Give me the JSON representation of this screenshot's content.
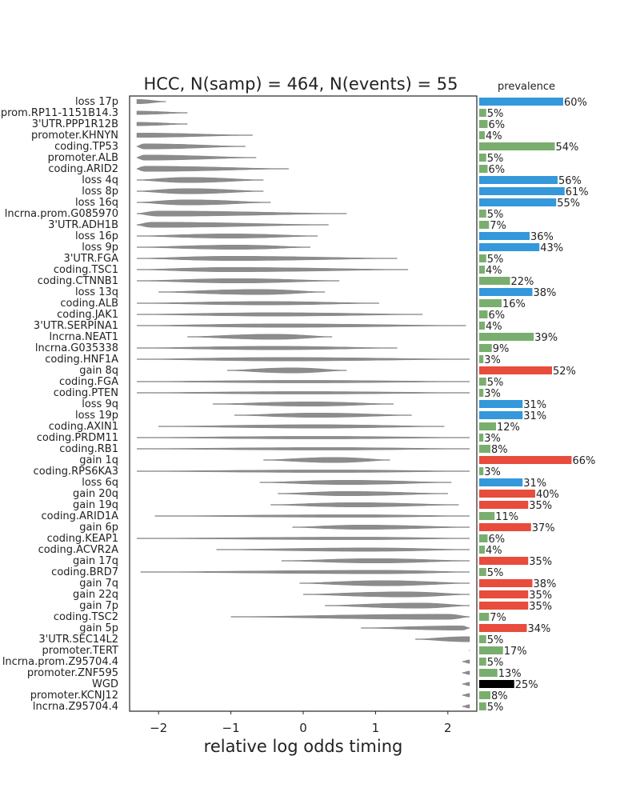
{
  "chart_data": {
    "type": "violin",
    "title": "HCC, N(samp) = 464, N(events) = 55",
    "xlabel": "relative log odds timing",
    "xlim": [
      -2.4,
      2.4
    ],
    "xticks": [
      -2,
      -1,
      0,
      1,
      2
    ],
    "prevalence_title": "prevalence",
    "events": [
      {
        "name": "loss 17p",
        "min": -2.3,
        "max": -1.9,
        "center": -2.3,
        "width": 0.5,
        "prevalence": 60,
        "category": "loss"
      },
      {
        "name": "prom.RP11-1151B14.3",
        "min": -2.3,
        "max": -1.6,
        "center": -2.3,
        "width": 0.4,
        "prevalence": 5,
        "category": "coding"
      },
      {
        "name": "3'UTR.PPP1R12B",
        "min": -2.3,
        "max": -1.6,
        "center": -2.3,
        "width": 0.4,
        "prevalence": 6,
        "category": "coding"
      },
      {
        "name": "promoter.KHNYN",
        "min": -2.3,
        "max": -0.7,
        "center": -2.3,
        "width": 0.5,
        "prevalence": 4,
        "category": "coding"
      },
      {
        "name": "coding.TP53",
        "min": -2.3,
        "max": -0.8,
        "center": -2.2,
        "width": 0.6,
        "prevalence": 54,
        "category": "coding"
      },
      {
        "name": "promoter.ALB",
        "min": -2.3,
        "max": -0.65,
        "center": -2.2,
        "width": 0.6,
        "prevalence": 5,
        "category": "coding"
      },
      {
        "name": "coding.ARID2",
        "min": -2.3,
        "max": -0.2,
        "center": -2.2,
        "width": 0.6,
        "prevalence": 6,
        "category": "coding"
      },
      {
        "name": "loss 4q",
        "min": -2.3,
        "max": -0.55,
        "center": -1.6,
        "width": 0.6,
        "prevalence": 56,
        "category": "loss"
      },
      {
        "name": "loss 8p",
        "min": -2.3,
        "max": -0.55,
        "center": -1.6,
        "width": 0.6,
        "prevalence": 61,
        "category": "loss"
      },
      {
        "name": "loss 16q",
        "min": -2.3,
        "max": -0.45,
        "center": -1.6,
        "width": 0.6,
        "prevalence": 55,
        "category": "loss"
      },
      {
        "name": "lncrna.prom.G085970",
        "min": -2.3,
        "max": 0.6,
        "center": -2.0,
        "width": 0.6,
        "prevalence": 5,
        "category": "coding"
      },
      {
        "name": "3'UTR.ADH1B",
        "min": -2.3,
        "max": 0.35,
        "center": -2.1,
        "width": 0.6,
        "prevalence": 7,
        "category": "coding"
      },
      {
        "name": "loss 16p",
        "min": -2.3,
        "max": 0.2,
        "center": -1.0,
        "width": 0.5,
        "prevalence": 36,
        "category": "loss"
      },
      {
        "name": "loss 9p",
        "min": -2.3,
        "max": 0.1,
        "center": -0.9,
        "width": 0.5,
        "prevalence": 43,
        "category": "loss"
      },
      {
        "name": "3'UTR.FGA",
        "min": -2.3,
        "max": 1.3,
        "center": -1.0,
        "width": 0.5,
        "prevalence": 5,
        "category": "coding"
      },
      {
        "name": "coding.TSC1",
        "min": -2.3,
        "max": 1.45,
        "center": -1.0,
        "width": 0.5,
        "prevalence": 4,
        "category": "coding"
      },
      {
        "name": "coding.CTNNB1",
        "min": -2.3,
        "max": 0.5,
        "center": -0.9,
        "width": 0.5,
        "prevalence": 22,
        "category": "coding"
      },
      {
        "name": "loss 13q",
        "min": -2.0,
        "max": 0.3,
        "center": -0.6,
        "width": 0.6,
        "prevalence": 38,
        "category": "loss"
      },
      {
        "name": "coding.ALB",
        "min": -2.3,
        "max": 1.05,
        "center": -0.5,
        "width": 0.4,
        "prevalence": 16,
        "category": "coding"
      },
      {
        "name": "coding.JAK1",
        "min": -2.3,
        "max": 1.65,
        "center": -0.4,
        "width": 0.4,
        "prevalence": 6,
        "category": "coding"
      },
      {
        "name": "3'UTR.SERPINA1",
        "min": -2.3,
        "max": 2.25,
        "center": -0.3,
        "width": 0.4,
        "prevalence": 4,
        "category": "coding"
      },
      {
        "name": "lncrna.NEAT1",
        "min": -1.6,
        "max": 0.4,
        "center": -0.4,
        "width": 0.6,
        "prevalence": 39,
        "category": "coding"
      },
      {
        "name": "lncrna.G035338",
        "min": -2.3,
        "max": 1.3,
        "center": -0.4,
        "width": 0.4,
        "prevalence": 9,
        "category": "coding"
      },
      {
        "name": "coding.HNF1A",
        "min": -2.3,
        "max": 2.3,
        "center": -0.3,
        "width": 0.4,
        "prevalence": 3,
        "category": "coding"
      },
      {
        "name": "gain 8q",
        "min": -1.05,
        "max": 0.6,
        "center": -0.15,
        "width": 0.6,
        "prevalence": 52,
        "category": "gain"
      },
      {
        "name": "coding.FGA",
        "min": -2.3,
        "max": 2.3,
        "center": 0.0,
        "width": 0.3,
        "prevalence": 5,
        "category": "coding"
      },
      {
        "name": "coding.PTEN",
        "min": -2.3,
        "max": 2.3,
        "center": 0.0,
        "width": 0.3,
        "prevalence": 3,
        "category": "coding"
      },
      {
        "name": "loss 9q",
        "min": -1.25,
        "max": 1.25,
        "center": 0.1,
        "width": 0.5,
        "prevalence": 31,
        "category": "loss"
      },
      {
        "name": "loss 19p",
        "min": -0.95,
        "max": 1.5,
        "center": 0.2,
        "width": 0.5,
        "prevalence": 31,
        "category": "loss"
      },
      {
        "name": "coding.AXIN1",
        "min": -2.0,
        "max": 1.95,
        "center": 0.2,
        "width": 0.4,
        "prevalence": 12,
        "category": "coding"
      },
      {
        "name": "coding.PRDM11",
        "min": -2.3,
        "max": 2.3,
        "center": 0.2,
        "width": 0.3,
        "prevalence": 3,
        "category": "coding"
      },
      {
        "name": "coding.RB1",
        "min": -2.3,
        "max": 2.3,
        "center": 0.3,
        "width": 0.3,
        "prevalence": 8,
        "category": "coding"
      },
      {
        "name": "gain 1q",
        "min": -0.55,
        "max": 1.2,
        "center": 0.45,
        "width": 0.6,
        "prevalence": 66,
        "category": "gain"
      },
      {
        "name": "coding.RPS6KA3",
        "min": -2.3,
        "max": 2.3,
        "center": 0.4,
        "width": 0.3,
        "prevalence": 3,
        "category": "coding"
      },
      {
        "name": "loss 6q",
        "min": -0.6,
        "max": 2.05,
        "center": 0.6,
        "width": 0.5,
        "prevalence": 31,
        "category": "loss"
      },
      {
        "name": "gain 20q",
        "min": -0.35,
        "max": 2.0,
        "center": 0.6,
        "width": 0.5,
        "prevalence": 40,
        "category": "gain"
      },
      {
        "name": "gain 19q",
        "min": -0.45,
        "max": 2.15,
        "center": 0.7,
        "width": 0.5,
        "prevalence": 35,
        "category": "gain"
      },
      {
        "name": "coding.ARID1A",
        "min": -2.05,
        "max": 2.3,
        "center": 0.7,
        "width": 0.3,
        "prevalence": 11,
        "category": "coding"
      },
      {
        "name": "gain 6p",
        "min": -0.15,
        "max": 2.3,
        "center": 0.8,
        "width": 0.5,
        "prevalence": 37,
        "category": "gain"
      },
      {
        "name": "coding.KEAP1",
        "min": -2.3,
        "max": 2.3,
        "center": 0.8,
        "width": 0.3,
        "prevalence": 6,
        "category": "coding"
      },
      {
        "name": "coding.ACVR2A",
        "min": -1.2,
        "max": 2.3,
        "center": 0.9,
        "width": 0.4,
        "prevalence": 4,
        "category": "coding"
      },
      {
        "name": "gain 17q",
        "min": -0.3,
        "max": 2.3,
        "center": 1.0,
        "width": 0.5,
        "prevalence": 35,
        "category": "gain"
      },
      {
        "name": "coding.BRD7",
        "min": -2.25,
        "max": 2.3,
        "center": 1.1,
        "width": 0.4,
        "prevalence": 5,
        "category": "coding"
      },
      {
        "name": "gain 7q",
        "min": -0.05,
        "max": 2.3,
        "center": 1.1,
        "width": 0.6,
        "prevalence": 38,
        "category": "gain"
      },
      {
        "name": "gain 22q",
        "min": 0.0,
        "max": 2.3,
        "center": 1.4,
        "width": 0.6,
        "prevalence": 35,
        "category": "gain"
      },
      {
        "name": "gain 7p",
        "min": 0.3,
        "max": 2.3,
        "center": 1.6,
        "width": 0.6,
        "prevalence": 35,
        "category": "gain"
      },
      {
        "name": "coding.TSC2",
        "min": -1.0,
        "max": 2.3,
        "center": 2.0,
        "width": 0.6,
        "prevalence": 7,
        "category": "coding"
      },
      {
        "name": "gain 5p",
        "min": 0.8,
        "max": 2.3,
        "center": 2.2,
        "width": 0.5,
        "prevalence": 34,
        "category": "gain"
      },
      {
        "name": "3'UTR.SEC14L2",
        "min": 1.55,
        "max": 2.3,
        "center": 2.3,
        "width": 0.6,
        "prevalence": 5,
        "category": "coding"
      },
      {
        "name": "promoter.TERT",
        "min": 2.29,
        "max": 2.3,
        "center": 2.3,
        "width": 0.0,
        "prevalence": 17,
        "category": "coding"
      },
      {
        "name": "lncrna.prom.Z95704.4",
        "min": 2.2,
        "max": 2.3,
        "center": 2.3,
        "width": 0.4,
        "prevalence": 5,
        "category": "coding"
      },
      {
        "name": "promoter.ZNF595",
        "min": 2.2,
        "max": 2.3,
        "center": 2.3,
        "width": 0.4,
        "prevalence": 13,
        "category": "coding"
      },
      {
        "name": "WGD",
        "min": 2.2,
        "max": 2.3,
        "center": 2.3,
        "width": 0.4,
        "prevalence": 25,
        "category": "wgd"
      },
      {
        "name": "promoter.KCNJ12",
        "min": 2.2,
        "max": 2.3,
        "center": 2.3,
        "width": 0.4,
        "prevalence": 8,
        "category": "coding"
      },
      {
        "name": "lncrna.Z95704.4",
        "min": 2.2,
        "max": 2.3,
        "center": 2.3,
        "width": 0.4,
        "prevalence": 5,
        "category": "coding"
      }
    ],
    "colors": {
      "violin": "#8c8c8c",
      "loss": "#3498db",
      "gain": "#e74c3c",
      "coding": "#7aae6e",
      "wgd": "#000000",
      "frame": "#262626"
    }
  }
}
